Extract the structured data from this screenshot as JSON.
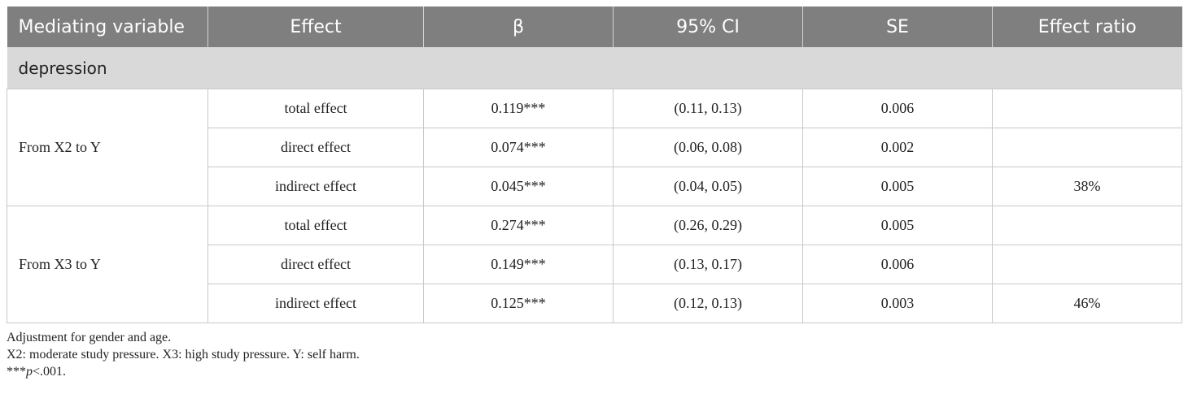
{
  "table": {
    "headers": [
      "Mediating variable",
      "Effect",
      "β",
      "95% CI",
      "SE",
      "Effect ratio"
    ],
    "section_label": "depression",
    "groups": [
      {
        "label": "From X2 to Y",
        "rows": [
          {
            "effect": "total effect",
            "beta": "0.119***",
            "ci": "(0.11, 0.13)",
            "se": "0.006",
            "ratio": ""
          },
          {
            "effect": "direct effect",
            "beta": "0.074***",
            "ci": "(0.06, 0.08)",
            "se": "0.002",
            "ratio": ""
          },
          {
            "effect": "indirect effect",
            "beta": "0.045***",
            "ci": "(0.04, 0.05)",
            "se": "0.005",
            "ratio": "38%"
          }
        ]
      },
      {
        "label": "From X3 to Y",
        "rows": [
          {
            "effect": "total effect",
            "beta": "0.274***",
            "ci": "(0.26, 0.29)",
            "se": "0.005",
            "ratio": ""
          },
          {
            "effect": "direct effect",
            "beta": "0.149***",
            "ci": "(0.13, 0.17)",
            "se": "0.006",
            "ratio": ""
          },
          {
            "effect": "indirect effect",
            "beta": "0.125***",
            "ci": "(0.12, 0.13)",
            "se": "0.003",
            "ratio": "46%"
          }
        ]
      }
    ]
  },
  "notes": {
    "adjustment": "Adjustment for gender and age.",
    "definitions": "X2: moderate study pressure. X3: high study pressure. Y: self harm.",
    "significance_stars": "***",
    "significance_p": "p",
    "significance_rest": "<.001."
  },
  "colors": {
    "header_bg": "#7f7f7f",
    "section_bg": "#d9d9d9",
    "grid": "#c8c8c8"
  }
}
